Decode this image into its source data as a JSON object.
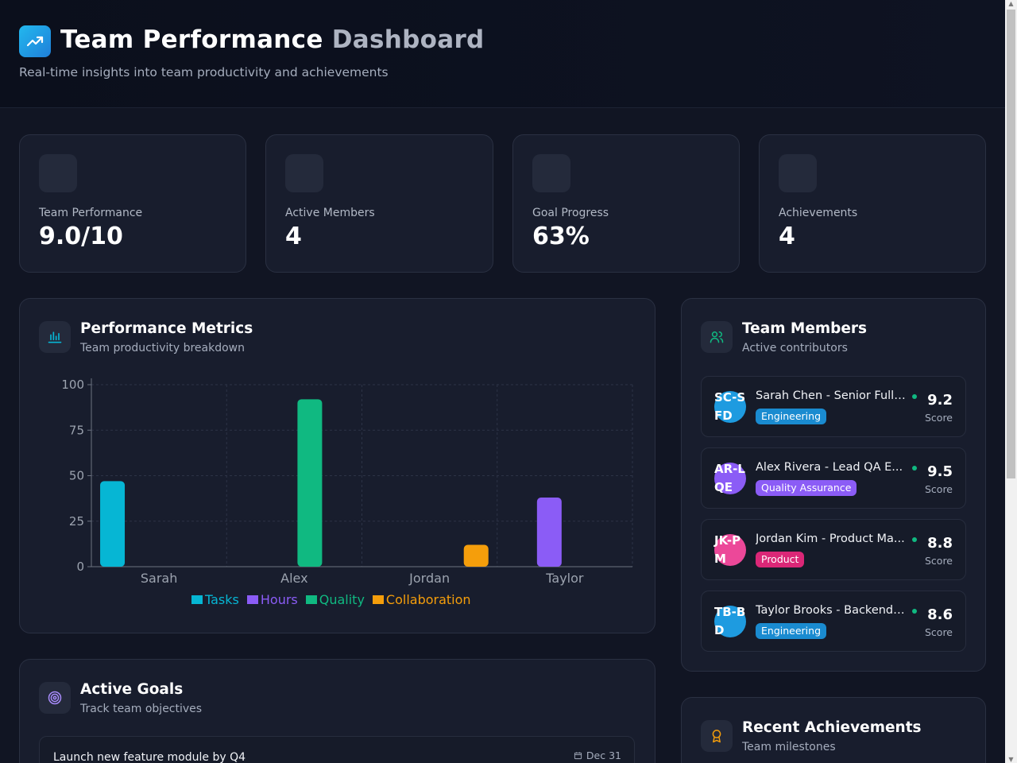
{
  "header": {
    "title_main": "Team Performance ",
    "title_accent": "Dashboard",
    "subtitle": "Real-time insights into team productivity and achievements",
    "logo_icon": "trending-up-icon"
  },
  "stats": [
    {
      "label": "Team Performance",
      "value": "9.0/10",
      "icon": "performance-icon"
    },
    {
      "label": "Active Members",
      "value": "4",
      "icon": "members-icon"
    },
    {
      "label": "Goal Progress",
      "value": "63%",
      "icon": "goal-icon"
    },
    {
      "label": "Achievements",
      "value": "4",
      "icon": "achievement-icon"
    }
  ],
  "performance": {
    "title": "Performance Metrics",
    "subtitle": "Team productivity breakdown",
    "icon": "bar-chart-icon"
  },
  "chart_data": {
    "type": "bar",
    "categories": [
      "Sarah",
      "Alex",
      "Jordan",
      "Taylor"
    ],
    "series": [
      {
        "name": "Tasks",
        "color": "#06b6d4",
        "values": [
          47,
          null,
          null,
          null
        ]
      },
      {
        "name": "Hours",
        "color": "#8b5cf6",
        "values": [
          null,
          null,
          null,
          38
        ]
      },
      {
        "name": "Quality",
        "color": "#10b981",
        "values": [
          null,
          92,
          null,
          null
        ]
      },
      {
        "name": "Collaboration",
        "color": "#f59e0b",
        "values": [
          null,
          null,
          12,
          null
        ]
      }
    ],
    "yticks": [
      0,
      25,
      50,
      75,
      100
    ],
    "ylim": [
      0,
      100
    ],
    "grid": true,
    "legend": "bottom"
  },
  "team": {
    "title": "Team Members",
    "subtitle": "Active contributors",
    "icon": "users-icon",
    "score_label": "Score",
    "members": [
      {
        "initials": "SC-SFD",
        "name": "Sarah Chen - Senior Full-...",
        "department": "Engineering",
        "score": "9.2",
        "avatar_color": "#1e9be0",
        "tag_color": "#1a8bd0"
      },
      {
        "initials": "AR-LQE",
        "name": "Alex Rivera - Lead QA E...",
        "department": "Quality Assurance",
        "score": "9.5",
        "avatar_color": "#8b5cf6",
        "tag_color": "#8b5cf6"
      },
      {
        "initials": "JK-PM",
        "name": "Jordan Kim - Product Ma...",
        "department": "Product",
        "score": "8.8",
        "avatar_color": "#ec4899",
        "tag_color": "#db2777"
      },
      {
        "initials": "TB-BD",
        "name": "Taylor Brooks - Backend ...",
        "department": "Engineering",
        "score": "8.6",
        "avatar_color": "#1e9be0",
        "tag_color": "#1a8bd0"
      }
    ]
  },
  "goals": {
    "title": "Active Goals",
    "subtitle": "Track team objectives",
    "icon": "target-icon",
    "items": [
      {
        "title": "Launch new feature module by Q4",
        "date": "Dec 31"
      }
    ]
  },
  "achievements": {
    "title": "Recent Achievements",
    "subtitle": "Team milestones",
    "icon": "award-icon"
  }
}
